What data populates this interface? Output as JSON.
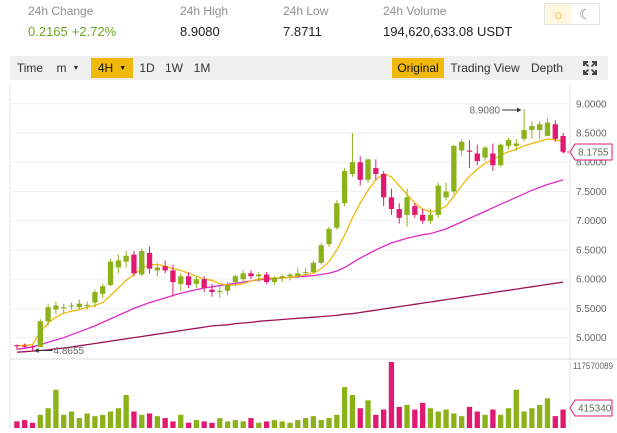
{
  "stats": [
    {
      "label": "24h Change",
      "values": [
        "0.2165",
        "+2.72%"
      ],
      "positive": true
    },
    {
      "label": "24h High",
      "values": [
        "8.9080"
      ],
      "positive": false
    },
    {
      "label": "24h Low",
      "values": [
        "7.8711"
      ],
      "positive": false
    },
    {
      "label": "24h Volume",
      "values": [
        "194,620,633.08 USDT"
      ],
      "positive": false
    }
  ],
  "theme": {
    "light_icon": "sun-icon",
    "dark_icon": "moon-icon",
    "selected": "light"
  },
  "toolbar": {
    "time_label": "Time",
    "minute_label": "m",
    "interval_label": "4H",
    "d1_label": "1D",
    "w1_label": "1W",
    "m1_label": "1M",
    "original_label": "Original",
    "tradingview_label": "Trading View",
    "depth_label": "Depth",
    "active_view": "Original"
  },
  "colors": {
    "up": "#8cb21b",
    "down": "#e21970",
    "ma_short": "#f0b90b",
    "ma_mid": "#e02bc4",
    "ma_long": "#9c1457",
    "accent": "#f0b90b"
  },
  "chart_data": {
    "type": "candlestick",
    "y_axis_ticks": [
      "9.0000",
      "8.5000",
      "8.0000",
      "7.5000",
      "7.0000",
      "6.5000",
      "6.0000",
      "5.5000",
      "5.0000"
    ],
    "ylim": [
      4.72,
      9.27
    ],
    "high_marker": "8.9080",
    "low_marker": "4.8655",
    "current_price": "8.1755",
    "volume_max_label": "117570089",
    "volume_current_label": "415340",
    "candles": [
      [
        4.87,
        4.88,
        4.8,
        4.86
      ],
      [
        4.86,
        4.9,
        4.82,
        4.85
      ],
      [
        4.85,
        4.87,
        4.78,
        4.84
      ],
      [
        4.84,
        5.32,
        4.84,
        5.28
      ],
      [
        5.28,
        5.58,
        5.2,
        5.52
      ],
      [
        5.48,
        5.62,
        5.4,
        5.55
      ],
      [
        5.5,
        5.58,
        5.42,
        5.52
      ],
      [
        5.55,
        5.6,
        5.48,
        5.55
      ],
      [
        5.52,
        5.65,
        5.48,
        5.58
      ],
      [
        5.55,
        5.62,
        5.48,
        5.56
      ],
      [
        5.6,
        5.82,
        5.52,
        5.78
      ],
      [
        5.75,
        5.92,
        5.68,
        5.88
      ],
      [
        5.9,
        6.35,
        5.88,
        6.3
      ],
      [
        6.2,
        6.42,
        6.1,
        6.32
      ],
      [
        6.3,
        6.48,
        6.2,
        6.4
      ],
      [
        6.42,
        6.48,
        6.05,
        6.1
      ],
      [
        6.08,
        6.52,
        6.05,
        6.48
      ],
      [
        6.45,
        6.56,
        6.1,
        6.18
      ],
      [
        6.15,
        6.28,
        6.05,
        6.2
      ],
      [
        6.22,
        6.32,
        6.1,
        6.15
      ],
      [
        6.15,
        6.25,
        5.7,
        5.95
      ],
      [
        5.92,
        6.1,
        5.8,
        6.05
      ],
      [
        6.05,
        6.12,
        5.85,
        5.9
      ],
      [
        5.92,
        6.05,
        5.85,
        6.0
      ],
      [
        6.0,
        6.05,
        5.78,
        5.85
      ],
      [
        5.82,
        5.92,
        5.7,
        5.78
      ],
      [
        5.78,
        5.88,
        5.68,
        5.8
      ],
      [
        5.8,
        5.95,
        5.72,
        5.9
      ],
      [
        5.95,
        6.08,
        5.88,
        6.05
      ],
      [
        6.0,
        6.15,
        5.95,
        6.1
      ],
      [
        6.1,
        6.15,
        6.0,
        6.05
      ],
      [
        6.05,
        6.12,
        5.95,
        6.08
      ],
      [
        6.08,
        6.12,
        5.92,
        5.95
      ],
      [
        5.95,
        6.05,
        5.9,
        6.02
      ],
      [
        6.02,
        6.08,
        5.95,
        6.05
      ],
      [
        6.05,
        6.1,
        5.98,
        6.08
      ],
      [
        6.05,
        6.2,
        6.02,
        6.1
      ],
      [
        6.12,
        6.18,
        6.05,
        6.12
      ],
      [
        6.12,
        6.32,
        6.1,
        6.28
      ],
      [
        6.28,
        6.62,
        6.25,
        6.58
      ],
      [
        6.6,
        6.9,
        6.55,
        6.86
      ],
      [
        6.88,
        7.35,
        6.85,
        7.3
      ],
      [
        7.3,
        7.9,
        7.25,
        7.85
      ],
      [
        7.8,
        8.5,
        7.75,
        8.0
      ],
      [
        8.0,
        8.1,
        7.6,
        7.7
      ],
      [
        7.7,
        8.05,
        7.65,
        8.05
      ],
      [
        7.9,
        8.05,
        7.7,
        7.8
      ],
      [
        7.8,
        7.85,
        7.25,
        7.4
      ],
      [
        7.4,
        7.55,
        7.1,
        7.2
      ],
      [
        7.2,
        7.3,
        6.95,
        7.05
      ],
      [
        7.1,
        7.55,
        6.9,
        7.4
      ],
      [
        7.25,
        7.3,
        7.05,
        7.1
      ],
      [
        7.1,
        7.2,
        6.95,
        7.0
      ],
      [
        7.0,
        7.2,
        6.95,
        7.1
      ],
      [
        7.1,
        7.65,
        7.05,
        7.6
      ],
      [
        7.4,
        7.65,
        7.35,
        7.5
      ],
      [
        7.5,
        8.3,
        7.45,
        8.28
      ],
      [
        8.2,
        8.4,
        8.1,
        8.35
      ],
      [
        8.2,
        8.38,
        7.9,
        8.18
      ],
      [
        8.15,
        8.3,
        7.95,
        8.02
      ],
      [
        8.08,
        8.28,
        8.02,
        8.25
      ],
      [
        8.15,
        8.32,
        7.85,
        7.95
      ],
      [
        7.95,
        8.32,
        7.92,
        8.3
      ],
      [
        8.28,
        8.42,
        8.22,
        8.38
      ],
      [
        8.28,
        8.4,
        8.2,
        8.32
      ],
      [
        8.4,
        8.91,
        8.35,
        8.55
      ],
      [
        8.55,
        8.7,
        8.4,
        8.62
      ],
      [
        8.55,
        8.7,
        8.4,
        8.65
      ],
      [
        8.45,
        8.75,
        8.45,
        8.68
      ],
      [
        8.65,
        8.72,
        8.35,
        8.4
      ],
      [
        8.45,
        8.5,
        8.15,
        8.18
      ]
    ],
    "volumes": [
      0.1,
      0.12,
      0.08,
      0.2,
      0.3,
      0.58,
      0.2,
      0.25,
      0.15,
      0.22,
      0.18,
      0.2,
      0.25,
      0.3,
      0.5,
      0.25,
      0.2,
      0.22,
      0.18,
      0.15,
      0.1,
      0.2,
      0.08,
      0.12,
      0.1,
      0.08,
      0.15,
      0.1,
      0.12,
      0.1,
      0.15,
      0.08,
      0.1,
      0.12,
      0.1,
      0.08,
      0.12,
      0.15,
      0.18,
      0.12,
      0.15,
      0.2,
      0.62,
      0.5,
      0.3,
      0.42,
      0.2,
      0.28,
      1.0,
      0.32,
      0.35,
      0.28,
      0.38,
      0.3,
      0.25,
      0.28,
      0.22,
      0.18,
      0.32,
      0.25,
      0.2,
      0.28,
      0.2,
      0.3,
      0.58,
      0.25,
      0.3,
      0.35,
      0.45,
      0.18,
      0.28
    ],
    "ma_short": [
      4.86,
      4.87,
      4.88,
      5.1,
      5.25,
      5.35,
      5.42,
      5.45,
      5.48,
      5.52,
      5.55,
      5.6,
      5.72,
      5.85,
      5.98,
      6.08,
      6.18,
      6.25,
      6.25,
      6.22,
      6.18,
      6.15,
      6.1,
      6.05,
      6.0,
      5.98,
      5.92,
      5.9,
      5.9,
      5.92,
      5.97,
      6.0,
      6.02,
      6.02,
      6.02,
      6.03,
      6.05,
      6.08,
      6.1,
      6.18,
      6.3,
      6.5,
      6.75,
      7.05,
      7.3,
      7.52,
      7.7,
      7.8,
      7.75,
      7.6,
      7.45,
      7.3,
      7.2,
      7.15,
      7.18,
      7.25,
      7.42,
      7.6,
      7.76,
      7.88,
      7.98,
      8.05,
      8.12,
      8.18,
      8.22,
      8.28,
      8.32,
      8.36,
      8.4,
      8.38,
      8.36
    ],
    "ma_mid": [
      4.8,
      4.82,
      4.84,
      4.88,
      4.92,
      4.96,
      5.0,
      5.05,
      5.1,
      5.15,
      5.2,
      5.26,
      5.32,
      5.38,
      5.44,
      5.5,
      5.55,
      5.6,
      5.64,
      5.68,
      5.72,
      5.76,
      5.79,
      5.82,
      5.85,
      5.87,
      5.89,
      5.91,
      5.93,
      5.95,
      5.97,
      5.99,
      6.0,
      6.01,
      6.02,
      6.03,
      6.04,
      6.05,
      6.06,
      6.08,
      6.1,
      6.14,
      6.2,
      6.28,
      6.36,
      6.43,
      6.5,
      6.56,
      6.62,
      6.66,
      6.7,
      6.73,
      6.76,
      6.78,
      6.82,
      6.86,
      6.92,
      6.98,
      7.04,
      7.1,
      7.16,
      7.22,
      7.28,
      7.34,
      7.4,
      7.46,
      7.52,
      7.57,
      7.62,
      7.66,
      7.7
    ],
    "ma_long": [
      4.75,
      4.76,
      4.77,
      4.78,
      4.79,
      4.81,
      4.82,
      4.84,
      4.86,
      4.88,
      4.9,
      4.92,
      4.94,
      4.96,
      4.98,
      5.0,
      5.02,
      5.04,
      5.06,
      5.08,
      5.1,
      5.12,
      5.14,
      5.16,
      5.18,
      5.2,
      5.21,
      5.22,
      5.24,
      5.25,
      5.26,
      5.28,
      5.29,
      5.3,
      5.31,
      5.32,
      5.33,
      5.34,
      5.35,
      5.36,
      5.37,
      5.38,
      5.4,
      5.41,
      5.43,
      5.45,
      5.47,
      5.49,
      5.51,
      5.53,
      5.55,
      5.57,
      5.59,
      5.61,
      5.63,
      5.65,
      5.67,
      5.69,
      5.71,
      5.73,
      5.75,
      5.77,
      5.79,
      5.81,
      5.83,
      5.85,
      5.87,
      5.89,
      5.91,
      5.93,
      5.95
    ]
  }
}
